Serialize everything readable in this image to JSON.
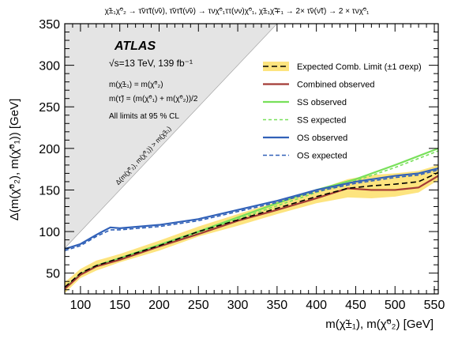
{
  "chart_data": {
    "type": "line",
    "process_title": "χ̃±₁χ̃⁰₂ → τ̃ντ̃τ(ν̃ν), τ̃ντ̃τ(ν̃ν) → τνχ̃⁰₁ττ(νν)χ̃⁰₁, χ̃±₁χ̃∓₁ → 2× τ̃ν(ν̃τ) → 2 × τνχ̃⁰₁",
    "experiment": "ATLAS",
    "energy_lumi": "√s=13 TeV, 139 fb⁻¹",
    "assumption_1": "m(χ̃±₁) = m(χ̃⁰₂)",
    "assumption_2": "m(τ̃) = (m(χ̃⁰₁) + m(χ̃⁰₂))/2",
    "cl_note": "All limits at 95 % CL",
    "forbidden_label": "Δ(m(χ̃⁰₂), m(χ̃⁰₁)) > m(χ̃±₁)",
    "xlabel": "m(χ̃±₁), m(χ̃⁰₂) [GeV]",
    "ylabel": "Δ(m(χ̃⁰₂), m(χ̃⁰₁)) [GeV]",
    "xlim": [
      80,
      555
    ],
    "ylim": [
      25,
      350
    ],
    "x_ticks": [
      100,
      150,
      200,
      250,
      300,
      350,
      400,
      450,
      500,
      550
    ],
    "y_ticks": [
      50,
      100,
      150,
      200,
      250,
      300,
      350
    ],
    "legend_position": "right",
    "band": {
      "name": "Expected Comb. Limit (±1 σexp)",
      "color": "#fde47f",
      "x": [
        80,
        100,
        120,
        150,
        200,
        250,
        300,
        350,
        400,
        440,
        470,
        500,
        530,
        555
      ],
      "upper": [
        39,
        55,
        65,
        73,
        89,
        106,
        121,
        136,
        150,
        163,
        168,
        170,
        173,
        180
      ],
      "lower": [
        26,
        44,
        53,
        63,
        77,
        94,
        107,
        121,
        134,
        141,
        140,
        142,
        147,
        162
      ]
    },
    "series": [
      {
        "name": "Expected Comb. Limit (±1 σexp)",
        "color": "#000000",
        "dash": "7,4",
        "x": [
          80,
          100,
          120,
          150,
          200,
          250,
          300,
          350,
          400,
          440,
          470,
          500,
          530,
          555
        ],
        "y": [
          33,
          50,
          59,
          68,
          83,
          100,
          114,
          128,
          142,
          152,
          155,
          157,
          160,
          171
        ]
      },
      {
        "name": "Combined observed",
        "color": "#a33a36",
        "dash": "",
        "x": [
          80,
          100,
          120,
          150,
          200,
          250,
          300,
          350,
          400,
          440,
          470,
          500,
          530,
          555
        ],
        "y": [
          31,
          48,
          58,
          66,
          82,
          97,
          113,
          126,
          140,
          152,
          150,
          150,
          153,
          167
        ]
      },
      {
        "name": "SS observed",
        "color": "#78e05a",
        "dash": "",
        "x": [
          80,
          100,
          120,
          150,
          200,
          250,
          300,
          350,
          400,
          450,
          500,
          555
        ],
        "y": [
          32,
          49,
          59,
          68,
          84,
          100,
          117,
          134,
          150,
          163,
          180,
          200
        ]
      },
      {
        "name": "SS expected",
        "color": "#78e05a",
        "dash": "4,3",
        "x": [
          80,
          100,
          120,
          150,
          200,
          250,
          300,
          350,
          400,
          450,
          500,
          555
        ],
        "y": [
          31,
          48,
          58,
          67,
          82,
          99,
          115,
          131,
          147,
          161,
          177,
          197
        ]
      },
      {
        "name": "OS observed",
        "color": "#3161b8",
        "dash": "",
        "x": [
          80,
          100,
          120,
          138,
          150,
          200,
          250,
          300,
          350,
          400,
          450,
          500,
          530,
          555
        ],
        "y": [
          79,
          85,
          96,
          105,
          104,
          108,
          115,
          126,
          137,
          150,
          160,
          167,
          170,
          176
        ]
      },
      {
        "name": "OS expected",
        "color": "#3161b8",
        "dash": "5,3",
        "x": [
          80,
          100,
          120,
          138,
          150,
          200,
          250,
          300,
          350,
          400,
          450,
          500,
          530,
          555
        ],
        "y": [
          77,
          83,
          94,
          102,
          102,
          106,
          113,
          124,
          135,
          148,
          158,
          165,
          168,
          174
        ]
      }
    ]
  }
}
